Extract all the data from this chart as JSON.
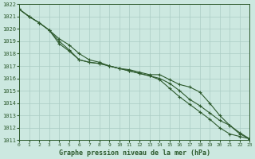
{
  "title": "Graphe pression niveau de la mer (hPa)",
  "background_color": "#cce8e0",
  "grid_color": "#aaccc4",
  "line_color": "#2d5a2d",
  "ylim": [
    1011,
    1022
  ],
  "xlim": [
    0,
    23
  ],
  "yticks": [
    1011,
    1012,
    1013,
    1014,
    1015,
    1016,
    1017,
    1018,
    1019,
    1020,
    1021,
    1022
  ],
  "xticks": [
    0,
    1,
    2,
    3,
    4,
    5,
    6,
    7,
    8,
    9,
    10,
    11,
    12,
    13,
    14,
    15,
    16,
    17,
    18,
    19,
    20,
    21,
    22,
    23
  ],
  "series": [
    [
      1021.6,
      1021.0,
      1020.5,
      1019.9,
      1018.8,
      1018.2,
      1017.5,
      1017.3,
      1017.2,
      1017.0,
      1016.8,
      1016.7,
      1016.5,
      1016.3,
      1016.3,
      1015.9,
      1015.5,
      1015.3,
      1014.9,
      1014.0,
      1013.0,
      1012.2,
      1011.5,
      1011.1
    ],
    [
      1021.6,
      1021.0,
      1020.5,
      1019.9,
      1019.2,
      1018.7,
      1018.0,
      1017.5,
      1017.3,
      1017.0,
      1016.8,
      1016.6,
      1016.4,
      1016.2,
      1015.9,
      1015.2,
      1014.5,
      1013.9,
      1013.3,
      1012.7,
      1012.0,
      1011.5,
      1011.3,
      1011.1
    ],
    [
      1021.6,
      1021.0,
      1020.5,
      1019.9,
      1019.0,
      1018.3,
      1017.5,
      1017.3,
      1017.2,
      1017.0,
      1016.8,
      1016.6,
      1016.4,
      1016.2,
      1016.0,
      1015.6,
      1015.0,
      1014.3,
      1013.8,
      1013.2,
      1012.6,
      1012.2,
      1011.6,
      1011.1
    ]
  ]
}
